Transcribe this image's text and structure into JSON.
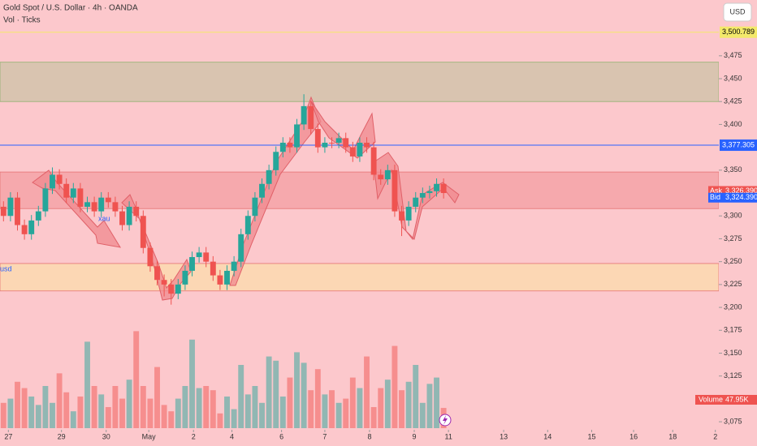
{
  "chart_data": {
    "type": "candlestick",
    "title": "Gold Spot / U.S. Dollar · 4h · OANDA",
    "subtitle": "Vol · Ticks",
    "currency": "USD",
    "annotations": {
      "zone_label": "usd",
      "series_label": "xau"
    },
    "up_color": "#26a69a",
    "down_color": "#ef5350",
    "xlim": [
      -0.5,
      102.4
    ],
    "ylim": [
      3068,
      3536
    ],
    "xticks": [
      {
        "value": 0.7,
        "label": "27"
      },
      {
        "value": 8.3,
        "label": "29"
      },
      {
        "value": 14.7,
        "label": "30"
      },
      {
        "value": 20.8,
        "label": "May"
      },
      {
        "value": 27.2,
        "label": "2"
      },
      {
        "value": 32.7,
        "label": "4"
      },
      {
        "value": 39.8,
        "label": "6"
      },
      {
        "value": 46,
        "label": "7"
      },
      {
        "value": 52.4,
        "label": "8"
      },
      {
        "value": 58.8,
        "label": "9"
      },
      {
        "value": 63.7,
        "label": "11"
      },
      {
        "value": 71.6,
        "label": "13"
      },
      {
        "value": 77.9,
        "label": "14"
      },
      {
        "value": 84.2,
        "label": "15"
      },
      {
        "value": 90.2,
        "label": "16"
      },
      {
        "value": 95.8,
        "label": "18"
      },
      {
        "value": 101.9,
        "label": "2"
      }
    ],
    "yticks": [
      {
        "value": 3075,
        "label": "3,075"
      },
      {
        "value": 3125,
        "label": "3,125"
      },
      {
        "value": 3150,
        "label": "3,150"
      },
      {
        "value": 3175,
        "label": "3,175"
      },
      {
        "value": 3200,
        "label": "3,200"
      },
      {
        "value": 3225,
        "label": "3,225"
      },
      {
        "value": 3250,
        "label": "3,250"
      },
      {
        "value": 3275,
        "label": "3,275"
      },
      {
        "value": 3300,
        "label": "3,300"
      },
      {
        "value": 3350,
        "label": "3,350"
      },
      {
        "value": 3400,
        "label": "3,400"
      },
      {
        "value": 3425,
        "label": "3,425"
      },
      {
        "value": 3450,
        "label": "3,450"
      },
      {
        "value": 3475,
        "label": "3,475"
      }
    ],
    "zones": [
      {
        "from": 3425,
        "to": 3468,
        "color": "#d9c4b0"
      },
      {
        "from": 3308,
        "to": 3348,
        "color": "#f6a9ad"
      },
      {
        "from": 3218,
        "to": 3248,
        "color": "#fcd7b4"
      }
    ],
    "levels": [
      {
        "value": 3500.789,
        "label": "3,500.789",
        "color": "#f3e96a"
      },
      {
        "value": 3377.305,
        "label": "3,377.305",
        "color": "#2962ff"
      }
    ],
    "ask": {
      "name": "Ask",
      "value": 3326.39,
      "label": "3,326.390"
    },
    "bid": {
      "name": "Bid",
      "value": 3324.39,
      "label": "3,324.390"
    },
    "open": [
      3310,
      3300,
      3320,
      3290,
      3280,
      3295,
      3305,
      3330,
      3345,
      3335,
      3320,
      3330,
      3310,
      3315,
      3305,
      3320,
      3315,
      3305,
      3290,
      3310,
      3300,
      3265,
      3245,
      3230,
      3225,
      3215,
      3225,
      3240,
      3255,
      3260,
      3250,
      3235,
      3225,
      3240,
      3250,
      3280,
      3300,
      3320,
      3335,
      3350,
      3370,
      3380,
      3375,
      3400,
      3420,
      3395,
      3375,
      3380,
      3380,
      3385,
      3375,
      3365,
      3380,
      3375,
      3345,
      3340,
      3350,
      3305,
      3295,
      3310,
      3320,
      3325,
      3327,
      3335
    ],
    "high": [
      3316,
      3326,
      3326,
      3296,
      3301,
      3311,
      3336,
      3353,
      3351,
      3341,
      3336,
      3336,
      3321,
      3321,
      3326,
      3326,
      3321,
      3311,
      3316,
      3316,
      3306,
      3271,
      3251,
      3236,
      3231,
      3231,
      3246,
      3261,
      3266,
      3266,
      3256,
      3241,
      3246,
      3256,
      3286,
      3306,
      3326,
      3341,
      3356,
      3376,
      3386,
      3386,
      3406,
      3433,
      3426,
      3401,
      3386,
      3386,
      3391,
      3391,
      3381,
      3386,
      3386,
      3381,
      3351,
      3356,
      3356,
      3311,
      3316,
      3326,
      3331,
      3333,
      3341,
      3341
    ],
    "low": [
      3294,
      3294,
      3284,
      3274,
      3274,
      3289,
      3299,
      3324,
      3329,
      3314,
      3314,
      3304,
      3304,
      3299,
      3299,
      3309,
      3299,
      3284,
      3284,
      3294,
      3259,
      3239,
      3224,
      3212,
      3203,
      3209,
      3219,
      3234,
      3249,
      3244,
      3229,
      3219,
      3219,
      3234,
      3244,
      3274,
      3294,
      3314,
      3329,
      3344,
      3364,
      3369,
      3369,
      3394,
      3389,
      3369,
      3369,
      3374,
      3374,
      3369,
      3359,
      3359,
      3369,
      3339,
      3334,
      3334,
      3299,
      3278,
      3289,
      3304,
      3314,
      3319,
      3321,
      3319
    ],
    "close": [
      3300,
      3320,
      3290,
      3280,
      3295,
      3305,
      3330,
      3345,
      3335,
      3320,
      3330,
      3310,
      3315,
      3305,
      3320,
      3315,
      3305,
      3290,
      3310,
      3300,
      3265,
      3245,
      3230,
      3225,
      3215,
      3225,
      3240,
      3255,
      3260,
      3250,
      3235,
      3225,
      3240,
      3250,
      3280,
      3300,
      3320,
      3335,
      3350,
      3370,
      3380,
      3375,
      3400,
      3420,
      3395,
      3375,
      3380,
      3380,
      3385,
      3375,
      3365,
      3380,
      3375,
      3345,
      3340,
      3350,
      3305,
      3295,
      3310,
      3320,
      3325,
      3327,
      3335,
      3325
    ],
    "volume": {
      "name": "Volume",
      "ylim": [
        0,
        500000
      ],
      "last_label": "47.95K",
      "values": [
        60000,
        70000,
        110000,
        95000,
        75000,
        55000,
        100000,
        60000,
        130000,
        85000,
        40000,
        75000,
        205000,
        100000,
        80000,
        50000,
        100000,
        70000,
        115000,
        230000,
        100000,
        70000,
        145000,
        55000,
        40000,
        70000,
        100000,
        210000,
        95000,
        100000,
        90000,
        35000,
        75000,
        45000,
        150000,
        80000,
        100000,
        60000,
        170000,
        160000,
        75000,
        120000,
        180000,
        155000,
        90000,
        140000,
        80000,
        90000,
        60000,
        70000,
        120000,
        95000,
        170000,
        50000,
        95000,
        115000,
        195000,
        90000,
        110000,
        150000,
        60000,
        105000,
        120000,
        47950
      ]
    }
  }
}
